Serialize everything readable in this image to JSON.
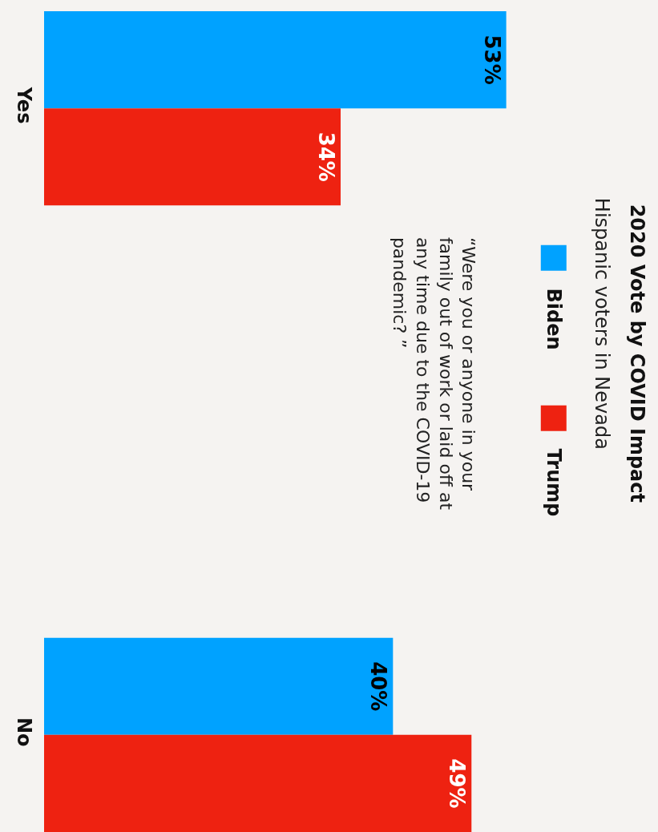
{
  "chart_data": {
    "type": "bar",
    "orientation": "horizontal",
    "title": "2020 Vote by COVID Impact",
    "subtitle": "Hispanic voters in Nevada",
    "annotations": [
      "“Were you or anyone in your family out of work or laid off at any time due to the COVID-19 pandemic? ”"
    ],
    "categories": [
      "Yes",
      "No"
    ],
    "series": [
      {
        "name": "Biden",
        "color": "#00a2ff",
        "values": [
          53,
          40
        ],
        "value_labels": [
          "53%",
          "40%"
        ]
      },
      {
        "name": "Trump",
        "color": "#ee2211",
        "values": [
          34,
          49
        ],
        "value_labels": [
          "34%",
          "49%"
        ]
      }
    ],
    "tick_labels": "y",
    "grid": false,
    "legend": "right"
  }
}
